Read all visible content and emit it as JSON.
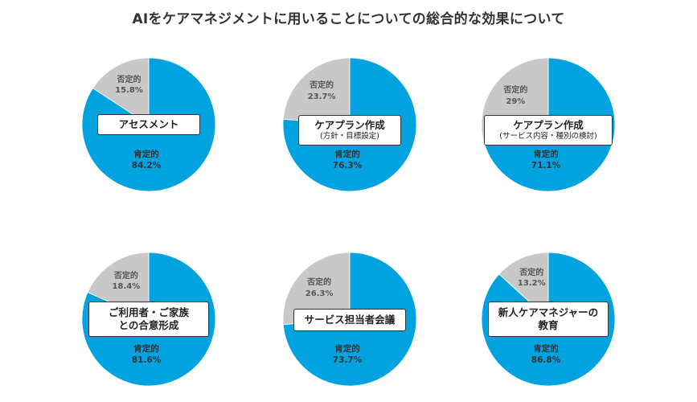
{
  "title": "AIをケアマネジメントに用いることについての総合的な効果について",
  "colors": {
    "positive": "#00A3E0",
    "negative": "#C8C8C8"
  },
  "chart_data": [
    {
      "type": "pie",
      "category": "アセスメント",
      "sub": "",
      "slices": [
        {
          "label": "肯定的",
          "value": 84.2,
          "text": "84.2%"
        },
        {
          "label": "否定的",
          "value": 15.8,
          "text": "15.8%"
        }
      ]
    },
    {
      "type": "pie",
      "category": "ケアプラン作成",
      "sub": "(方針・目標設定)",
      "slices": [
        {
          "label": "肯定的",
          "value": 76.3,
          "text": "76.3%"
        },
        {
          "label": "否定的",
          "value": 23.7,
          "text": "23.7%"
        }
      ]
    },
    {
      "type": "pie",
      "category": "ケアプラン作成",
      "sub": "(サービス内容・種別の検討)",
      "slices": [
        {
          "label": "肯定的",
          "value": 71.1,
          "text": "71.1%"
        },
        {
          "label": "否定的",
          "value": 29,
          "text": "29%"
        }
      ]
    },
    {
      "type": "pie",
      "category": "ご利用者・ご家族\nとの合意形成",
      "sub": "",
      "slices": [
        {
          "label": "肯定的",
          "value": 81.6,
          "text": "81.6%"
        },
        {
          "label": "否定的",
          "value": 18.4,
          "text": "18.4%"
        }
      ]
    },
    {
      "type": "pie",
      "category": "サービス担当者会議",
      "sub": "",
      "slices": [
        {
          "label": "肯定的",
          "value": 73.7,
          "text": "73.7%"
        },
        {
          "label": "否定的",
          "value": 26.3,
          "text": "26.3%"
        }
      ]
    },
    {
      "type": "pie",
      "category": "新人ケアマネジャーの\n教育",
      "sub": "",
      "slices": [
        {
          "label": "肯定的",
          "value": 86.8,
          "text": "86.8%"
        },
        {
          "label": "否定的",
          "value": 13.2,
          "text": "13.2%"
        }
      ]
    }
  ]
}
